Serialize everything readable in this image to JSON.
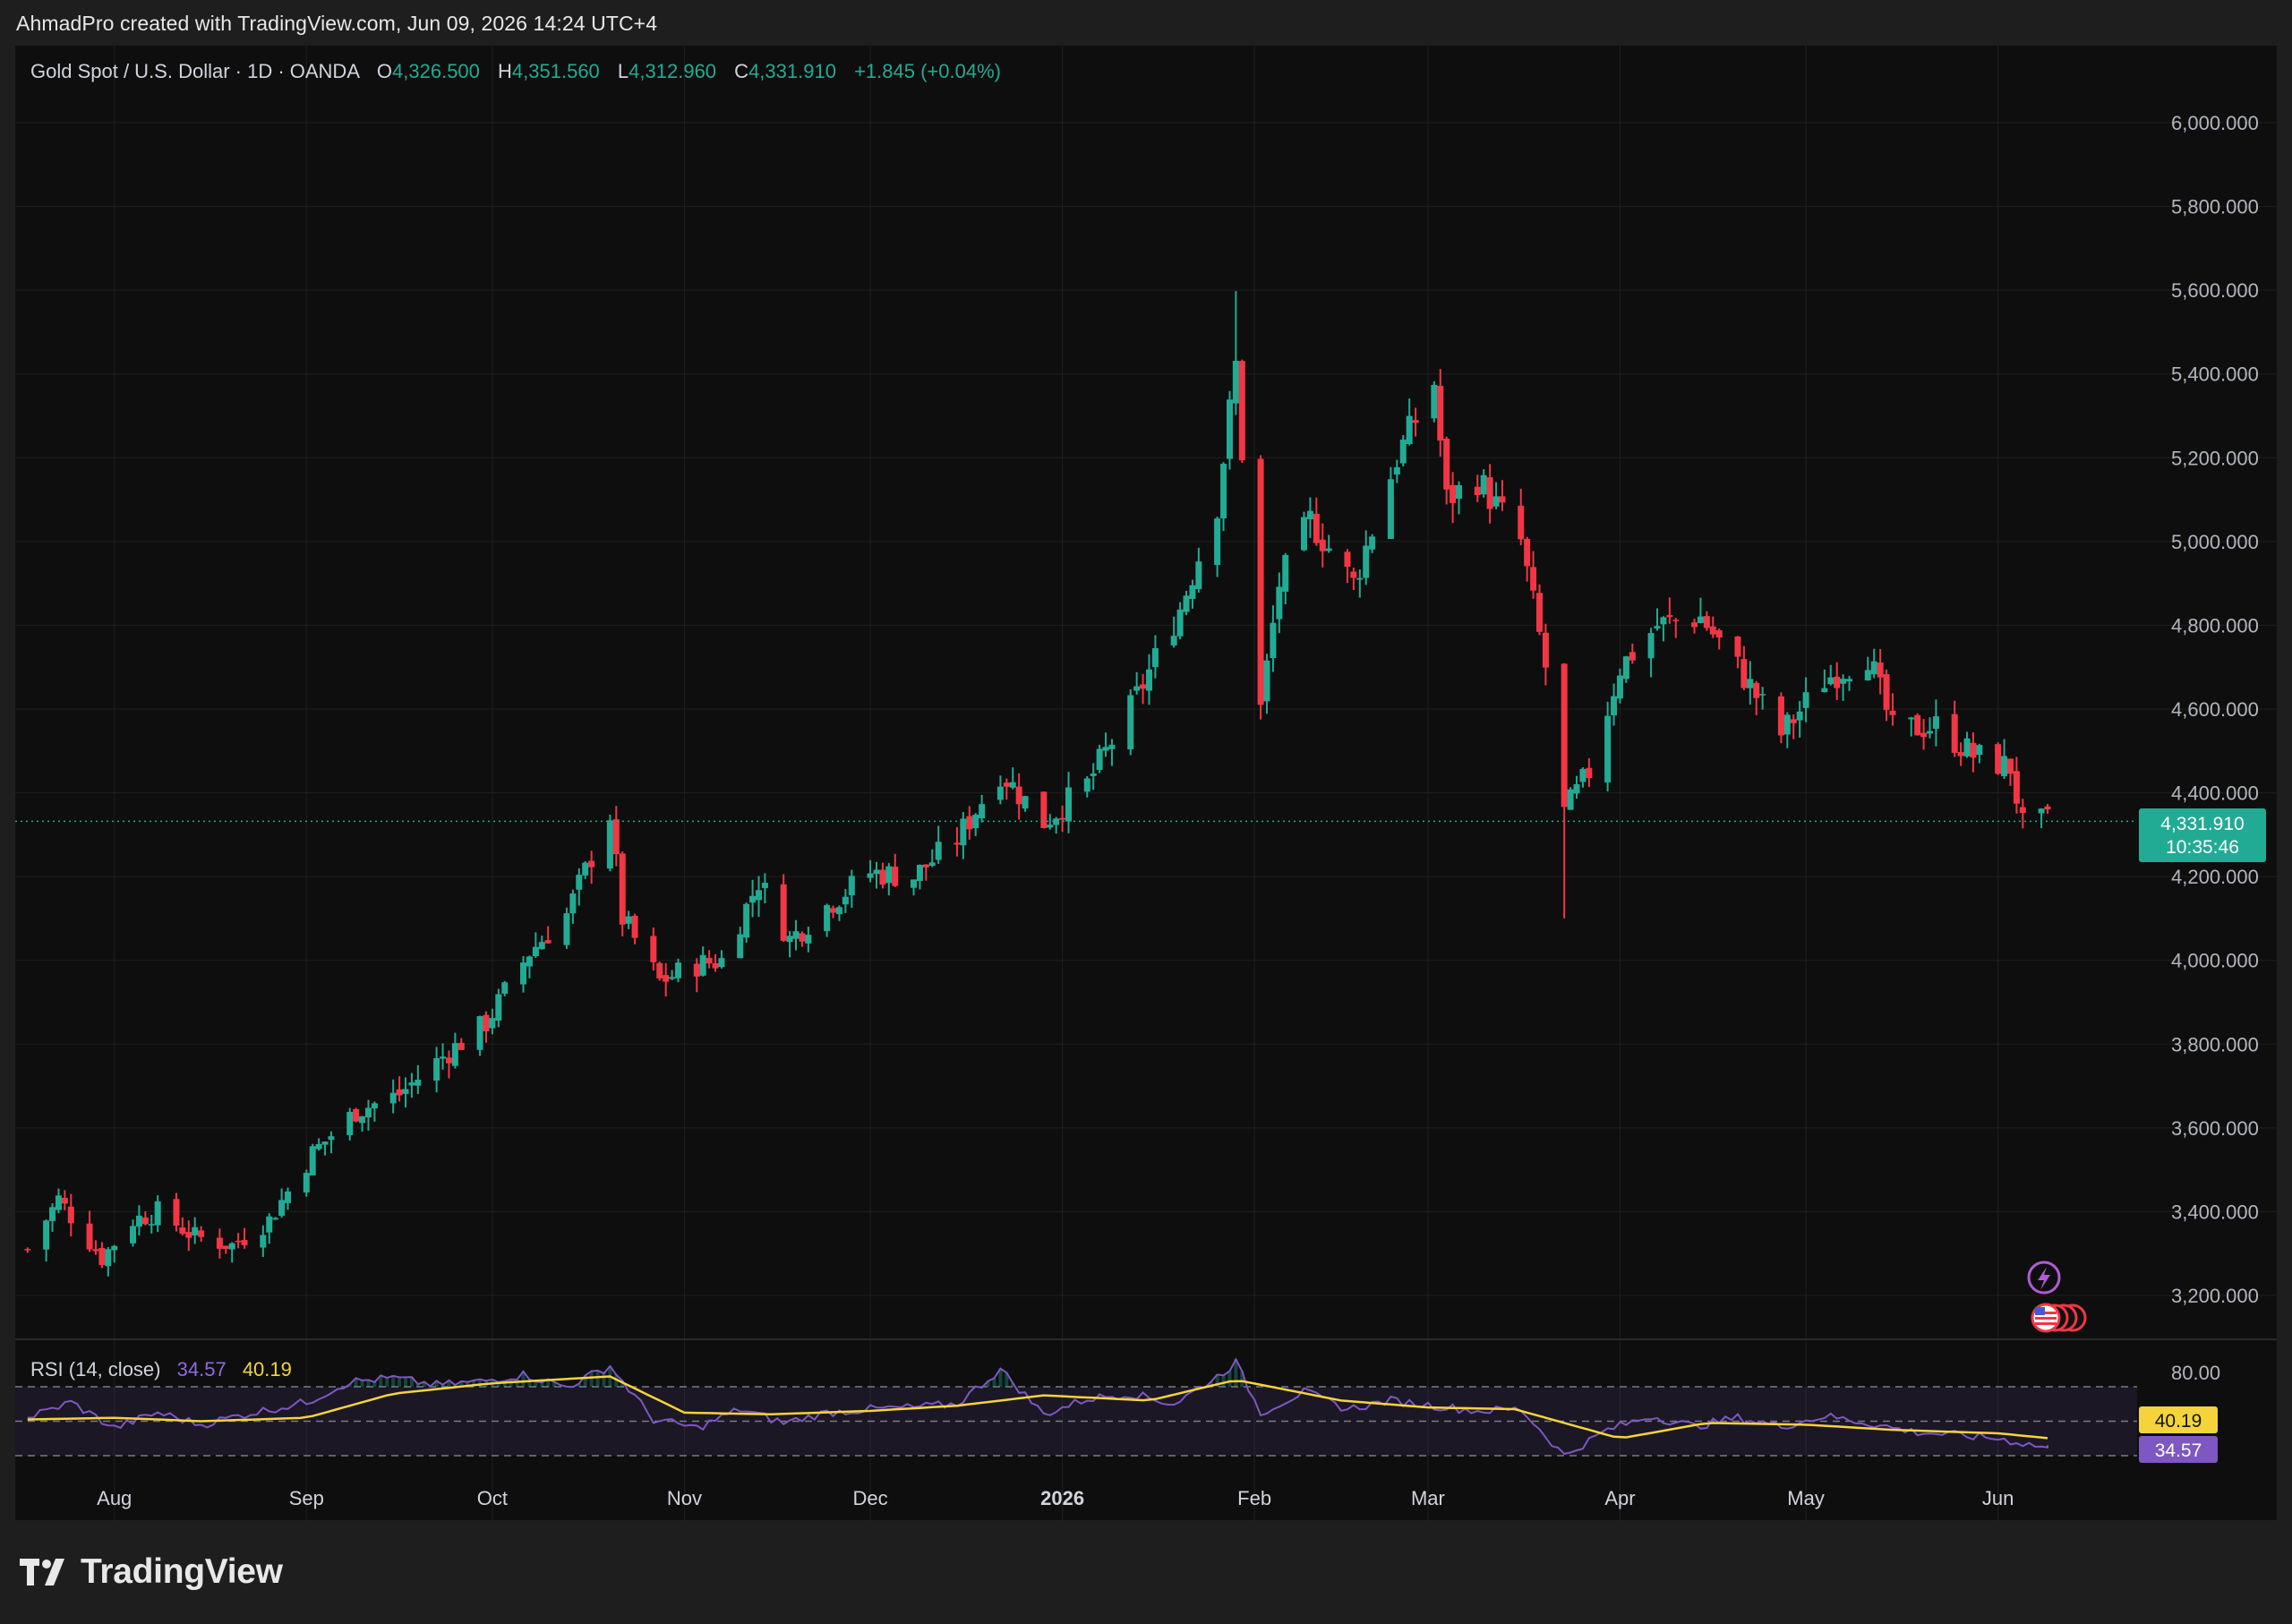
{
  "header": {
    "text": "AhmadPro created with TradingView.com, Jun 09, 2026 14:24 UTC+4"
  },
  "legend": {
    "symbol": "Gold Spot / U.S. Dollar · 1D · OANDA",
    "o_label": "O",
    "o_value": "4,326.500",
    "h_label": "H",
    "h_value": "4,351.560",
    "l_label": "L",
    "l_value": "4,312.960",
    "c_label": "C",
    "c_value": "4,331.910",
    "change": "+1.845 (+0.04%)"
  },
  "price_tag": {
    "price": "4,331.910",
    "countdown": "10:35:46"
  },
  "rsi": {
    "label": "RSI (14, close)",
    "value": "34.57",
    "ma_value": "40.19",
    "level_label": "80.00"
  },
  "footer": {
    "brand": "TradingView"
  },
  "colors": {
    "up": "#22ab94",
    "down": "#f23645",
    "rsi_line": "#7e57c2",
    "rsi_ma": "#f5d43b",
    "background": "#0e0e0e"
  },
  "chart_data": [
    {
      "type": "candlestick",
      "title": "Gold Spot / U.S. Dollar · 1D · OANDA",
      "y_axis": {
        "ticks": [
          "3,200.000",
          "3,400.000",
          "3,600.000",
          "3,800.000",
          "4,000.000",
          "4,200.000",
          "4,400.000",
          "4,600.000",
          "4,800.000",
          "5,000.000",
          "5,200.000",
          "5,400.000",
          "5,600.000",
          "5,800.000",
          "6,000.000"
        ],
        "range": [
          3100,
          6100
        ]
      },
      "x_axis": {
        "ticks": [
          "Aug",
          "Sep",
          "Oct",
          "Nov",
          "Dec",
          "2026",
          "Feb",
          "Mar",
          "Apr",
          "May",
          "Jun"
        ],
        "bold": "2026"
      },
      "last_price": 4331.91,
      "series_path": [
        [
          "2025-07-18",
          3310
        ],
        [
          "2025-07-23",
          3430
        ],
        [
          "2025-07-30",
          3290
        ],
        [
          "2025-08-04",
          3380
        ],
        [
          "2025-08-08",
          3400
        ],
        [
          "2025-08-14",
          3340
        ],
        [
          "2025-08-20",
          3320
        ],
        [
          "2025-08-26",
          3380
        ],
        [
          "2025-09-02",
          3540
        ],
        [
          "2025-09-09",
          3640
        ],
        [
          "2025-09-16",
          3680
        ],
        [
          "2025-09-23",
          3770
        ],
        [
          "2025-09-30",
          3850
        ],
        [
          "2025-10-07",
          4020
        ],
        [
          "2025-10-13",
          4110
        ],
        [
          "2025-10-20",
          4350
        ],
        [
          "2025-10-22",
          4100
        ],
        [
          "2025-10-28",
          3950
        ],
        [
          "2025-11-03",
          3990
        ],
        [
          "2025-11-07",
          4000
        ],
        [
          "2025-11-13",
          4190
        ],
        [
          "2025-11-18",
          4050
        ],
        [
          "2025-11-24",
          4130
        ],
        [
          "2025-12-01",
          4210
        ],
        [
          "2025-12-08",
          4200
        ],
        [
          "2025-12-15",
          4290
        ],
        [
          "2025-12-22",
          4450
        ],
        [
          "2025-12-29",
          4330
        ],
        [
          "2026-01-05",
          4420
        ],
        [
          "2026-01-12",
          4600
        ],
        [
          "2026-01-20",
          4840
        ],
        [
          "2026-01-26",
          5090
        ],
        [
          "2026-01-29",
          5420
        ],
        [
          "2026-02-02",
          4600
        ],
        [
          "2026-02-05",
          4900
        ],
        [
          "2026-02-10",
          5050
        ],
        [
          "2026-02-17",
          4900
        ],
        [
          "2026-02-24",
          5200
        ],
        [
          "2026-03-02",
          5380
        ],
        [
          "2026-03-04",
          5100
        ],
        [
          "2026-03-09",
          5150
        ],
        [
          "2026-03-16",
          5000
        ],
        [
          "2026-03-20",
          4700
        ],
        [
          "2026-03-23",
          4350
        ],
        [
          "2026-03-27",
          4450
        ],
        [
          "2026-04-01",
          4700
        ],
        [
          "2026-04-07",
          4800
        ],
        [
          "2026-04-14",
          4820
        ],
        [
          "2026-04-20",
          4700
        ],
        [
          "2026-04-27",
          4540
        ],
        [
          "2026-05-04",
          4670
        ],
        [
          "2026-05-11",
          4730
        ],
        [
          "2026-05-15",
          4550
        ],
        [
          "2026-05-22",
          4560
        ],
        [
          "2026-05-28",
          4490
        ],
        [
          "2026-06-03",
          4460
        ],
        [
          "2026-06-05",
          4320
        ],
        [
          "2026-06-09",
          4332
        ]
      ],
      "extremes": {
        "high": [
          "2026-01-29",
          5598
        ],
        "low": [
          "2026-03-23",
          4100
        ]
      }
    },
    {
      "type": "line",
      "title": "RSI (14, close)",
      "levels": [
        70,
        50,
        30
      ],
      "y_range": [
        20,
        90
      ],
      "series": [
        {
          "name": "RSI",
          "color": "#7e57c2",
          "x": [
            "2025-07-18",
            "2025-07-25",
            "2025-08-01",
            "2025-08-08",
            "2025-08-15",
            "2025-08-22",
            "2025-09-01",
            "2025-09-08",
            "2025-09-15",
            "2025-09-22",
            "2025-09-29",
            "2025-10-06",
            "2025-10-13",
            "2025-10-20",
            "2025-10-27",
            "2025-11-03",
            "2025-11-10",
            "2025-11-17",
            "2025-11-24",
            "2025-12-01",
            "2025-12-08",
            "2025-12-15",
            "2025-12-22",
            "2025-12-29",
            "2026-01-05",
            "2026-01-12",
            "2026-01-19",
            "2026-01-26",
            "2026-01-29",
            "2026-02-02",
            "2026-02-09",
            "2026-02-16",
            "2026-02-23",
            "2026-03-02",
            "2026-03-09",
            "2026-03-16",
            "2026-03-23",
            "2026-03-30",
            "2026-04-06",
            "2026-04-13",
            "2026-04-20",
            "2026-04-27",
            "2026-05-04",
            "2026-05-11",
            "2026-05-18",
            "2026-05-25",
            "2026-06-01",
            "2026-06-09"
          ],
          "values": [
            52,
            61,
            46,
            55,
            48,
            54,
            61,
            73,
            75,
            71,
            73,
            77,
            70,
            82,
            51,
            46,
            57,
            49,
            55,
            57,
            58,
            60,
            80,
            54,
            63,
            66,
            60,
            76,
            84,
            55,
            67,
            57,
            62,
            59,
            56,
            57,
            30,
            45,
            53,
            47,
            52,
            47,
            53,
            49,
            44,
            42,
            40,
            34.57
          ]
        },
        {
          "name": "RSI-based MA",
          "color": "#f5d43b",
          "x": [
            "2025-07-18",
            "2025-08-01",
            "2025-08-15",
            "2025-09-01",
            "2025-09-15",
            "2025-10-01",
            "2025-10-20",
            "2025-11-01",
            "2025-11-15",
            "2025-12-01",
            "2025-12-15",
            "2025-12-29",
            "2026-01-15",
            "2026-01-29",
            "2026-02-15",
            "2026-03-01",
            "2026-03-15",
            "2026-04-01",
            "2026-04-15",
            "2026-05-01",
            "2026-05-15",
            "2026-06-01",
            "2026-06-09"
          ],
          "values": [
            51,
            52,
            50,
            52,
            66,
            72,
            76,
            55,
            54,
            56,
            59,
            65,
            62,
            74,
            62,
            58,
            57,
            40,
            49,
            48,
            45,
            43,
            40.19
          ]
        }
      ]
    }
  ]
}
